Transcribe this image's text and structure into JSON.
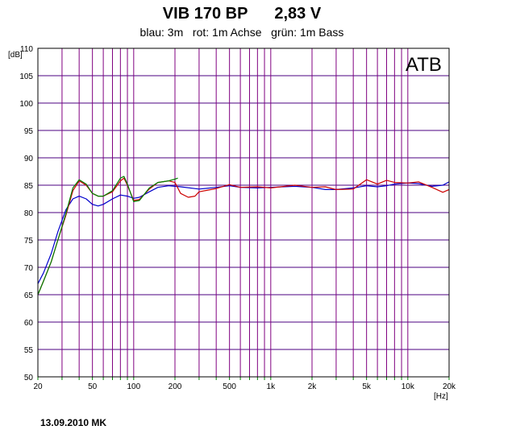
{
  "chart_data": {
    "type": "line",
    "title": "VIB 170 BP      2,83 V",
    "subtitle": "blau: 3m   rot: 1m Achse   grün: 1m Bass",
    "xlabel": "[Hz]",
    "ylabel": "[dB]",
    "xscale": "log",
    "xlim": [
      20,
      20000
    ],
    "ylim": [
      50,
      110
    ],
    "grid": true,
    "x_ticks": [
      {
        "value": 20,
        "label": "20"
      },
      {
        "value": 50,
        "label": "50"
      },
      {
        "value": 100,
        "label": "100"
      },
      {
        "value": 200,
        "label": "200"
      },
      {
        "value": 500,
        "label": "500"
      },
      {
        "value": 1000,
        "label": "1k"
      },
      {
        "value": 2000,
        "label": "2k"
      },
      {
        "value": 5000,
        "label": "5k"
      },
      {
        "value": 10000,
        "label": "10k"
      },
      {
        "value": 20000,
        "label": "20k"
      }
    ],
    "y_ticks": [
      "50",
      "55",
      "60",
      "65",
      "70",
      "75",
      "80",
      "85",
      "90",
      "95",
      "100",
      "105",
      "110"
    ],
    "annotation": "ATB",
    "series": [
      {
        "color": "#0000cc",
        "points": [
          [
            20,
            67
          ],
          [
            22,
            69
          ],
          [
            25,
            72.5
          ],
          [
            28,
            76.5
          ],
          [
            32,
            80.5
          ],
          [
            36,
            82.5
          ],
          [
            40,
            83
          ],
          [
            45,
            82.5
          ],
          [
            50,
            81.5
          ],
          [
            55,
            81.2
          ],
          [
            60,
            81.5
          ],
          [
            70,
            82.5
          ],
          [
            80,
            83.2
          ],
          [
            90,
            83
          ],
          [
            100,
            82.6
          ],
          [
            110,
            82.8
          ],
          [
            130,
            83.8
          ],
          [
            150,
            84.6
          ],
          [
            180,
            84.9
          ],
          [
            220,
            84.7
          ],
          [
            300,
            84.3
          ],
          [
            400,
            84.6
          ],
          [
            500,
            84.9
          ],
          [
            600,
            84.6
          ],
          [
            800,
            84.5
          ],
          [
            1000,
            84.6
          ],
          [
            1500,
            84.8
          ],
          [
            2000,
            84.6
          ],
          [
            2500,
            84.2
          ],
          [
            3000,
            84.2
          ],
          [
            4000,
            84.5
          ],
          [
            5000,
            84.9
          ],
          [
            6000,
            84.7
          ],
          [
            7000,
            84.9
          ],
          [
            8000,
            85.2
          ],
          [
            10000,
            85.4
          ],
          [
            12000,
            85.3
          ],
          [
            15000,
            84.8
          ],
          [
            18000,
            85
          ],
          [
            20000,
            85.6
          ]
        ]
      },
      {
        "color": "#cc0000",
        "points": [
          [
            20,
            65
          ],
          [
            22,
            67.5
          ],
          [
            25,
            71
          ],
          [
            28,
            75
          ],
          [
            32,
            79.5
          ],
          [
            36,
            84
          ],
          [
            40,
            85.8
          ],
          [
            45,
            85
          ],
          [
            50,
            83.5
          ],
          [
            55,
            83
          ],
          [
            60,
            83
          ],
          [
            70,
            83.8
          ],
          [
            80,
            85.8
          ],
          [
            85,
            86.3
          ],
          [
            90,
            85
          ],
          [
            100,
            82.2
          ],
          [
            110,
            82.4
          ],
          [
            130,
            84.3
          ],
          [
            150,
            85.5
          ],
          [
            180,
            85.8
          ],
          [
            200,
            85.5
          ],
          [
            220,
            83.5
          ],
          [
            250,
            82.8
          ],
          [
            280,
            83
          ],
          [
            300,
            83.8
          ],
          [
            400,
            84.4
          ],
          [
            500,
            85.1
          ],
          [
            600,
            84.6
          ],
          [
            800,
            84.7
          ],
          [
            1000,
            84.5
          ],
          [
            1500,
            85
          ],
          [
            2000,
            84.6
          ],
          [
            2500,
            84.7
          ],
          [
            3000,
            84.2
          ],
          [
            4000,
            84.3
          ],
          [
            5000,
            86
          ],
          [
            6000,
            85.2
          ],
          [
            7000,
            85.9
          ],
          [
            8000,
            85.5
          ],
          [
            10000,
            85.4
          ],
          [
            12000,
            85.6
          ],
          [
            15000,
            84.6
          ],
          [
            18000,
            83.7
          ],
          [
            20000,
            84.2
          ]
        ]
      },
      {
        "color": "#008000",
        "points": [
          [
            20,
            65
          ],
          [
            22,
            67.5
          ],
          [
            25,
            71
          ],
          [
            28,
            75
          ],
          [
            32,
            79.8
          ],
          [
            36,
            84.5
          ],
          [
            40,
            86
          ],
          [
            45,
            85.2
          ],
          [
            50,
            83.5
          ],
          [
            55,
            83
          ],
          [
            60,
            83
          ],
          [
            70,
            84
          ],
          [
            80,
            86.3
          ],
          [
            85,
            86.6
          ],
          [
            90,
            85.2
          ],
          [
            100,
            82
          ],
          [
            110,
            82.2
          ],
          [
            130,
            84.5
          ],
          [
            150,
            85.5
          ],
          [
            180,
            85.8
          ],
          [
            200,
            86.1
          ],
          [
            210,
            86.3
          ]
        ]
      }
    ]
  },
  "footer": "13.09.2010 MK"
}
